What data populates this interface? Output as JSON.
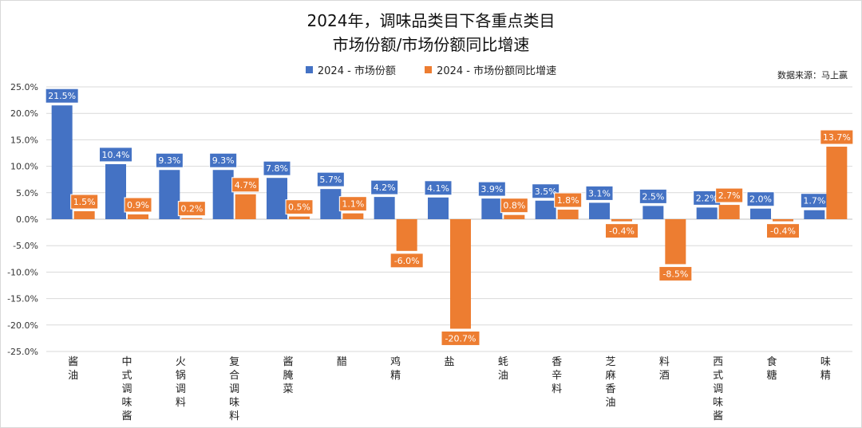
{
  "chart_data": {
    "type": "bar",
    "title": "2024年，调味品类目下各重点类目",
    "subtitle": "市场份额/市场份额同比增速",
    "source": "数据来源：马上赢",
    "ylim": [
      -25,
      25
    ],
    "yticks": [
      "25.0%",
      "20.0%",
      "15.0%",
      "10.0%",
      "5.0%",
      "0.0%",
      "-5.0%",
      "-10.0%",
      "-15.0%",
      "-20.0%",
      "-25.0%"
    ],
    "categories": [
      "酱油",
      "中式调味酱",
      "火锅调料",
      "复合调味料",
      "酱腌菜",
      "醋",
      "鸡精",
      "盐",
      "蚝油",
      "香辛料",
      "芝麻香油",
      "料酒",
      "西式调味酱",
      "食糖",
      "味精"
    ],
    "series": [
      {
        "name": "2024 - 市场份额",
        "color": "#4472C4",
        "values": [
          21.5,
          10.4,
          9.3,
          9.3,
          7.8,
          5.7,
          4.2,
          4.1,
          3.9,
          3.5,
          3.1,
          2.5,
          2.2,
          2.0,
          1.7
        ],
        "labels": [
          "21.5%",
          "10.4%",
          "9.3%",
          "9.3%",
          "7.8%",
          "5.7%",
          "4.2%",
          "4.1%",
          "3.9%",
          "3.5%",
          "3.1%",
          "2.5%",
          "2.2%",
          "2.0%",
          "1.7%"
        ]
      },
      {
        "name": "2024 - 市场份额同比增速",
        "color": "#ED7D31",
        "values": [
          1.5,
          0.9,
          0.2,
          4.7,
          0.5,
          1.1,
          -6.0,
          -20.7,
          0.8,
          1.8,
          -0.4,
          -8.5,
          2.7,
          -0.4,
          13.7
        ],
        "labels": [
          "1.5%",
          "0.9%",
          "0.2%",
          "4.7%",
          "0.5%",
          "1.1%",
          "-6.0%",
          "-20.7%",
          "0.8%",
          "1.8%",
          "-0.4%",
          "-8.5%",
          "2.7%",
          "-0.4%",
          "13.7%"
        ]
      }
    ],
    "grid": true,
    "legend_position": "top"
  }
}
